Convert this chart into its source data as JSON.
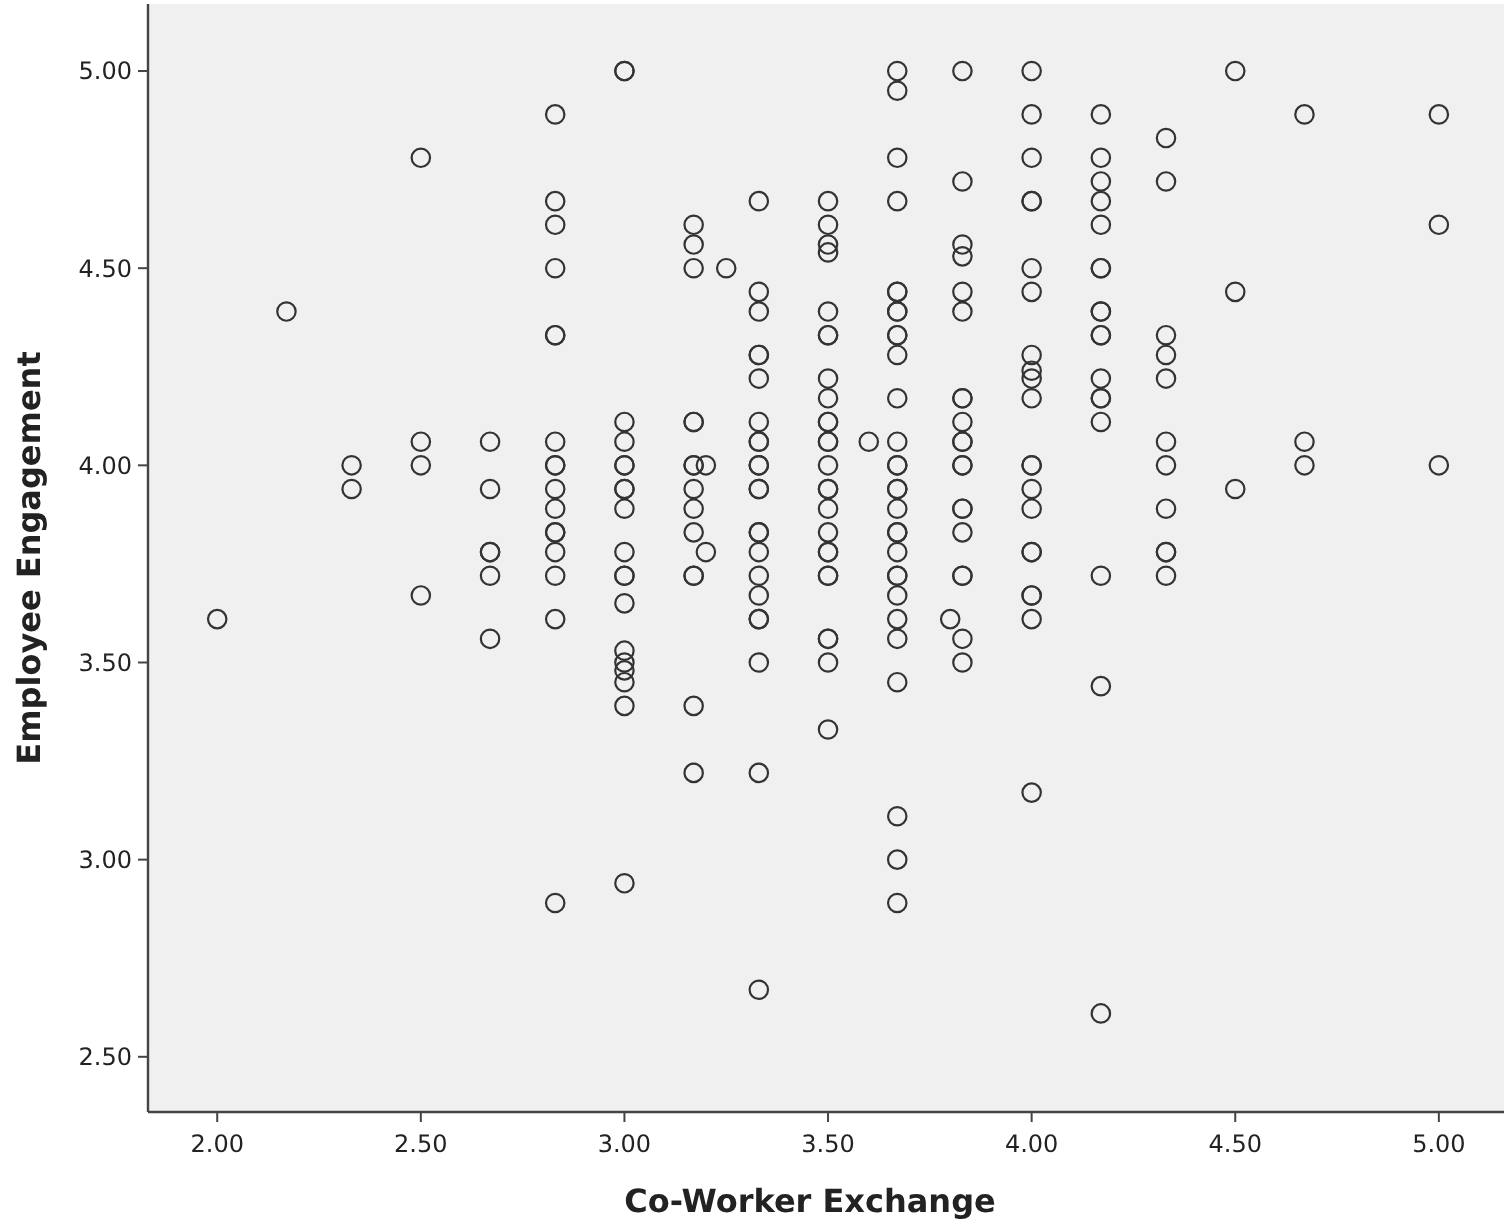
{
  "chart_data": {
    "type": "scatter",
    "xlabel": "Co-Worker Exchange",
    "ylabel": "Employee Engagement",
    "xlim": [
      1.83,
      5.16
    ],
    "ylim": [
      2.36,
      5.17
    ],
    "xticks": [
      {
        "value": 2,
        "label": "2.00"
      },
      {
        "value": 2.5,
        "label": "2.50"
      },
      {
        "value": 3,
        "label": "3.00"
      },
      {
        "value": 3.5,
        "label": "3.50"
      },
      {
        "value": 4,
        "label": "4.00"
      },
      {
        "value": 4.5,
        "label": "4.50"
      },
      {
        "value": 5,
        "label": "5.00"
      }
    ],
    "yticks": [
      {
        "value": 2.5,
        "label": "2.50"
      },
      {
        "value": 3,
        "label": "3.00"
      },
      {
        "value": 3.5,
        "label": "3.50"
      },
      {
        "value": 4,
        "label": "4.00"
      },
      {
        "value": 4.5,
        "label": "4.50"
      },
      {
        "value": 5,
        "label": "5.00"
      }
    ],
    "grid": false,
    "marker": "circle",
    "series": [
      {
        "color": "#333333",
        "x": [
          2.0,
          2.17,
          2.33,
          2.33,
          2.5,
          2.5,
          2.5,
          2.5,
          2.67,
          2.67,
          2.67,
          2.67,
          2.67,
          2.67,
          2.83,
          2.83,
          2.83,
          2.83,
          2.83,
          2.83,
          2.83,
          2.83,
          2.83,
          2.83,
          2.83,
          2.83,
          2.83,
          2.83,
          2.83,
          2.83,
          2.83,
          3.0,
          3.0,
          3.0,
          3.0,
          3.0,
          3.0,
          3.0,
          3.0,
          3.0,
          3.0,
          3.0,
          3.0,
          3.0,
          3.0,
          3.0,
          3.0,
          3.0,
          3.0,
          3.0,
          3.17,
          3.17,
          3.17,
          3.17,
          3.17,
          3.17,
          3.17,
          3.17,
          3.17,
          3.17,
          3.17,
          3.17,
          3.17,
          3.17,
          3.2,
          3.2,
          3.25,
          3.33,
          3.33,
          3.33,
          3.33,
          3.33,
          3.33,
          3.33,
          3.33,
          3.33,
          3.33,
          3.33,
          3.33,
          3.33,
          3.33,
          3.33,
          3.33,
          3.33,
          3.33,
          3.33,
          3.33,
          3.33,
          3.33,
          3.33,
          3.5,
          3.5,
          3.5,
          3.5,
          3.5,
          3.5,
          3.5,
          3.5,
          3.5,
          3.5,
          3.5,
          3.5,
          3.5,
          3.5,
          3.5,
          3.5,
          3.5,
          3.5,
          3.5,
          3.5,
          3.5,
          3.5,
          3.5,
          3.5,
          3.5,
          3.5,
          3.6,
          3.67,
          3.67,
          3.67,
          3.67,
          3.67,
          3.67,
          3.67,
          3.67,
          3.67,
          3.67,
          3.67,
          3.67,
          3.67,
          3.67,
          3.67,
          3.67,
          3.67,
          3.67,
          3.67,
          3.67,
          3.67,
          3.67,
          3.67,
          3.67,
          3.67,
          3.67,
          3.67,
          3.67,
          3.67,
          3.67,
          3.8,
          3.83,
          3.83,
          3.83,
          3.83,
          3.83,
          3.83,
          3.83,
          3.83,
          3.83,
          3.83,
          3.83,
          3.83,
          3.83,
          3.83,
          3.83,
          3.83,
          3.83,
          3.83,
          3.83,
          3.83,
          4.0,
          4.0,
          4.0,
          4.0,
          4.0,
          4.0,
          4.0,
          4.0,
          4.0,
          4.0,
          4.0,
          4.0,
          4.0,
          4.0,
          4.0,
          4.0,
          4.0,
          4.0,
          4.0,
          4.0,
          4.0,
          4.17,
          4.17,
          4.17,
          4.17,
          4.17,
          4.17,
          4.17,
          4.17,
          4.17,
          4.17,
          4.17,
          4.17,
          4.17,
          4.17,
          4.17,
          4.17,
          4.17,
          4.17,
          4.33,
          4.33,
          4.33,
          4.33,
          4.33,
          4.33,
          4.33,
          4.33,
          4.33,
          4.33,
          4.33,
          4.5,
          4.5,
          4.5,
          4.67,
          4.67,
          4.67,
          5.0,
          5.0,
          5.0
        ],
        "values": [
          3.61,
          4.39,
          4.0,
          3.94,
          4.78,
          4.06,
          4.0,
          3.67,
          4.06,
          3.94,
          3.78,
          3.78,
          3.72,
          3.56,
          4.89,
          4.67,
          4.61,
          4.5,
          4.33,
          4.33,
          4.06,
          4.0,
          4.0,
          3.94,
          3.89,
          3.83,
          3.83,
          3.78,
          3.72,
          3.61,
          2.89,
          5.0,
          5.0,
          4.11,
          4.06,
          4.0,
          4.0,
          3.94,
          3.94,
          3.89,
          3.78,
          3.72,
          3.72,
          3.65,
          3.53,
          3.5,
          3.48,
          3.45,
          3.39,
          2.94,
          4.61,
          4.56,
          4.5,
          4.11,
          4.11,
          4.0,
          4.0,
          3.94,
          3.89,
          3.83,
          3.72,
          3.72,
          3.39,
          3.22,
          4.0,
          3.78,
          4.5,
          4.67,
          4.44,
          4.39,
          4.28,
          4.28,
          4.22,
          4.11,
          4.06,
          4.06,
          4.0,
          4.0,
          3.94,
          3.94,
          3.83,
          3.83,
          3.78,
          3.72,
          3.67,
          3.61,
          3.61,
          3.5,
          3.22,
          2.67,
          4.67,
          4.61,
          4.56,
          4.54,
          4.39,
          4.33,
          4.33,
          4.22,
          4.17,
          4.11,
          4.11,
          4.06,
          4.06,
          4.0,
          3.94,
          3.94,
          3.89,
          3.83,
          3.78,
          3.78,
          3.72,
          3.72,
          3.56,
          3.56,
          3.5,
          3.33,
          4.06,
          5.0,
          4.95,
          4.78,
          4.67,
          4.44,
          4.44,
          4.39,
          4.39,
          4.33,
          4.33,
          4.28,
          4.17,
          4.06,
          4.0,
          4.0,
          3.94,
          3.94,
          3.89,
          3.83,
          3.83,
          3.78,
          3.72,
          3.72,
          3.67,
          3.61,
          3.56,
          3.45,
          3.11,
          3.0,
          2.89,
          3.61,
          5.0,
          4.72,
          4.56,
          4.53,
          4.44,
          4.39,
          4.17,
          4.17,
          4.11,
          4.06,
          4.06,
          4.0,
          4.0,
          3.89,
          3.89,
          3.83,
          3.72,
          3.72,
          3.56,
          3.5,
          5.0,
          4.89,
          4.78,
          4.67,
          4.67,
          4.5,
          4.44,
          4.28,
          4.24,
          4.22,
          4.17,
          4.0,
          4.0,
          3.94,
          3.89,
          3.78,
          3.78,
          3.67,
          3.67,
          3.61,
          3.17,
          4.89,
          4.78,
          4.72,
          4.67,
          4.61,
          4.5,
          4.5,
          4.39,
          4.39,
          4.33,
          4.33,
          4.22,
          4.17,
          4.17,
          4.11,
          3.72,
          3.44,
          2.61,
          4.83,
          4.72,
          4.33,
          4.28,
          4.22,
          4.06,
          4.0,
          3.89,
          3.78,
          3.78,
          3.72,
          5.0,
          4.44,
          3.94,
          4.89,
          4.06,
          4.0,
          4.89,
          4.61,
          4.0
        ]
      }
    ]
  }
}
